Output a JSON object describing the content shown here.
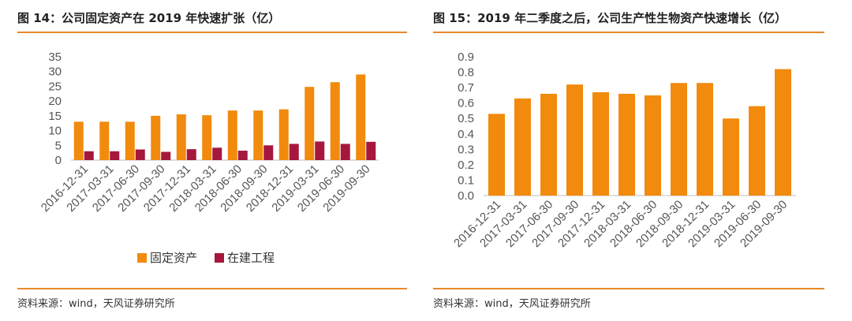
{
  "left": {
    "title": "图 14：公司固定资产在 2019 年快速扩张（亿）",
    "source": "资料来源：wind，天风证券研究所"
  },
  "right": {
    "title": "图 15：2019 年二季度之后，公司生产性生物资产快速增长（亿）",
    "source": "资料来源：wind，天风证券研究所"
  },
  "colors": {
    "orange": "#f28a0d",
    "crimson": "#a5173d",
    "rule": "#e8892b"
  },
  "chart_data": [
    {
      "type": "bar",
      "categories": [
        "2016-12-31",
        "2017-03-31",
        "2017-06-30",
        "2017-09-30",
        "2017-12-31",
        "2018-03-31",
        "2018-06-30",
        "2018-09-30",
        "2018-12-31",
        "2019-03-31",
        "2019-06-30",
        "2019-09-30"
      ],
      "series": [
        {
          "name": "固定资产",
          "color": "#f28a0d",
          "values": [
            13.0,
            13.0,
            13.0,
            15.0,
            15.5,
            15.2,
            16.8,
            16.8,
            17.2,
            24.8,
            26.4,
            29.0
          ]
        },
        {
          "name": "在建工程",
          "color": "#a5173d",
          "values": [
            3.0,
            3.0,
            3.6,
            2.8,
            3.7,
            4.2,
            3.2,
            5.0,
            5.5,
            6.3,
            5.5,
            6.2
          ]
        }
      ],
      "ylim": [
        0,
        35
      ],
      "yticks": [
        0,
        5,
        10,
        15,
        20,
        25,
        30,
        35
      ],
      "ytick_labels": [
        "0",
        "5",
        "10",
        "15",
        "20",
        "25",
        "30",
        "35"
      ],
      "grid": false,
      "legend": "bottom"
    },
    {
      "type": "bar",
      "categories": [
        "2016-12-31",
        "2017-03-31",
        "2017-06-30",
        "2017-09-30",
        "2017-12-31",
        "2018-03-31",
        "2018-06-30",
        "2018-09-30",
        "2018-12-31",
        "2019-03-31",
        "2019-06-30",
        "2019-09-30"
      ],
      "series": [
        {
          "color": "#f28a0d",
          "values": [
            0.53,
            0.63,
            0.66,
            0.72,
            0.67,
            0.66,
            0.65,
            0.73,
            0.73,
            0.5,
            0.58,
            0.82
          ]
        }
      ],
      "ylim": [
        0,
        0.9
      ],
      "yticks": [
        0,
        0.1,
        0.2,
        0.3,
        0.4,
        0.5,
        0.6,
        0.7,
        0.8,
        0.9
      ],
      "ytick_labels": [
        "0.0",
        "0.1",
        "0.2",
        "0.3",
        "0.4",
        "0.5",
        "0.6",
        "0.7",
        "0.8",
        "0.9"
      ],
      "grid": false,
      "legend": "none"
    }
  ]
}
